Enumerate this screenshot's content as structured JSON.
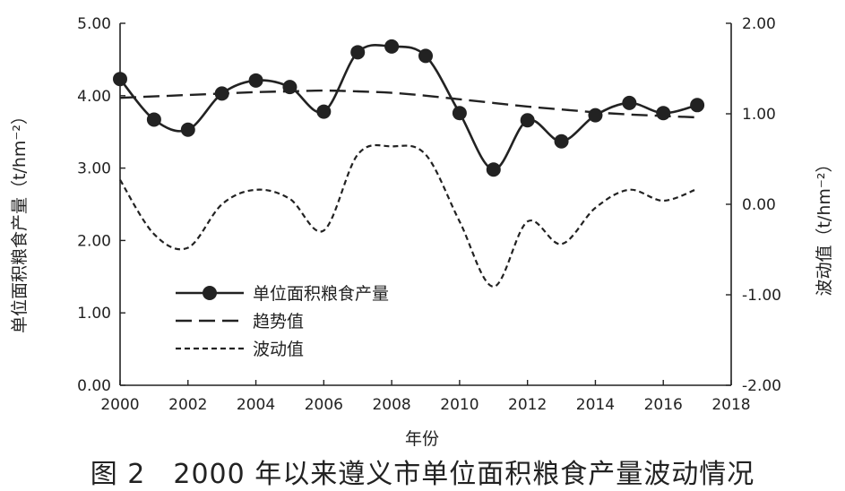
{
  "chart_data": {
    "type": "line",
    "xlabel": "年份",
    "ylabel_left": "单位面积粮食产量（t/hm⁻²）",
    "ylabel_right": "波动值（t/hm⁻²）",
    "x_ticks": [
      "2000",
      "2002",
      "2004",
      "2006",
      "2008",
      "2010",
      "2012",
      "2014",
      "2016",
      "2018"
    ],
    "y_left_ticks": [
      "0.00",
      "1.00",
      "2.00",
      "3.00",
      "4.00",
      "5.00"
    ],
    "y_right_ticks": [
      "-2.00",
      "-1.00",
      "0.00",
      "1.00",
      "2.00"
    ],
    "xlim": [
      2000,
      2018
    ],
    "ylim_left": [
      0,
      5
    ],
    "ylim_right": [
      -2,
      2
    ],
    "x": [
      2000,
      2001,
      2002,
      2003,
      2004,
      2005,
      2006,
      2007,
      2008,
      2009,
      2010,
      2011,
      2012,
      2013,
      2014,
      2015,
      2016,
      2017
    ],
    "series": [
      {
        "name": "单位面积粮食产量",
        "axis": "left",
        "style": "solid-marker",
        "values": [
          4.23,
          3.67,
          3.53,
          4.03,
          4.21,
          4.12,
          3.78,
          4.6,
          4.68,
          4.55,
          3.76,
          2.98,
          3.66,
          3.37,
          3.73,
          3.9,
          3.76,
          3.87
        ]
      },
      {
        "name": "趋势值",
        "axis": "left",
        "style": "long-dash",
        "values": [
          3.97,
          3.99,
          4.01,
          4.03,
          4.05,
          4.06,
          4.07,
          4.06,
          4.04,
          4.0,
          3.95,
          3.9,
          3.85,
          3.81,
          3.77,
          3.74,
          3.72,
          3.7
        ]
      },
      {
        "name": "波动值",
        "axis": "right",
        "style": "short-dash",
        "values": [
          0.27,
          -0.33,
          -0.48,
          0.0,
          0.16,
          0.06,
          -0.29,
          0.55,
          0.64,
          0.55,
          -0.19,
          -0.91,
          -0.19,
          -0.44,
          -0.04,
          0.16,
          0.04,
          0.17
        ]
      }
    ],
    "legend_position": "center-left"
  },
  "caption": "图 2　2000 年以来遵义市单位面积粮食产量波动情况"
}
